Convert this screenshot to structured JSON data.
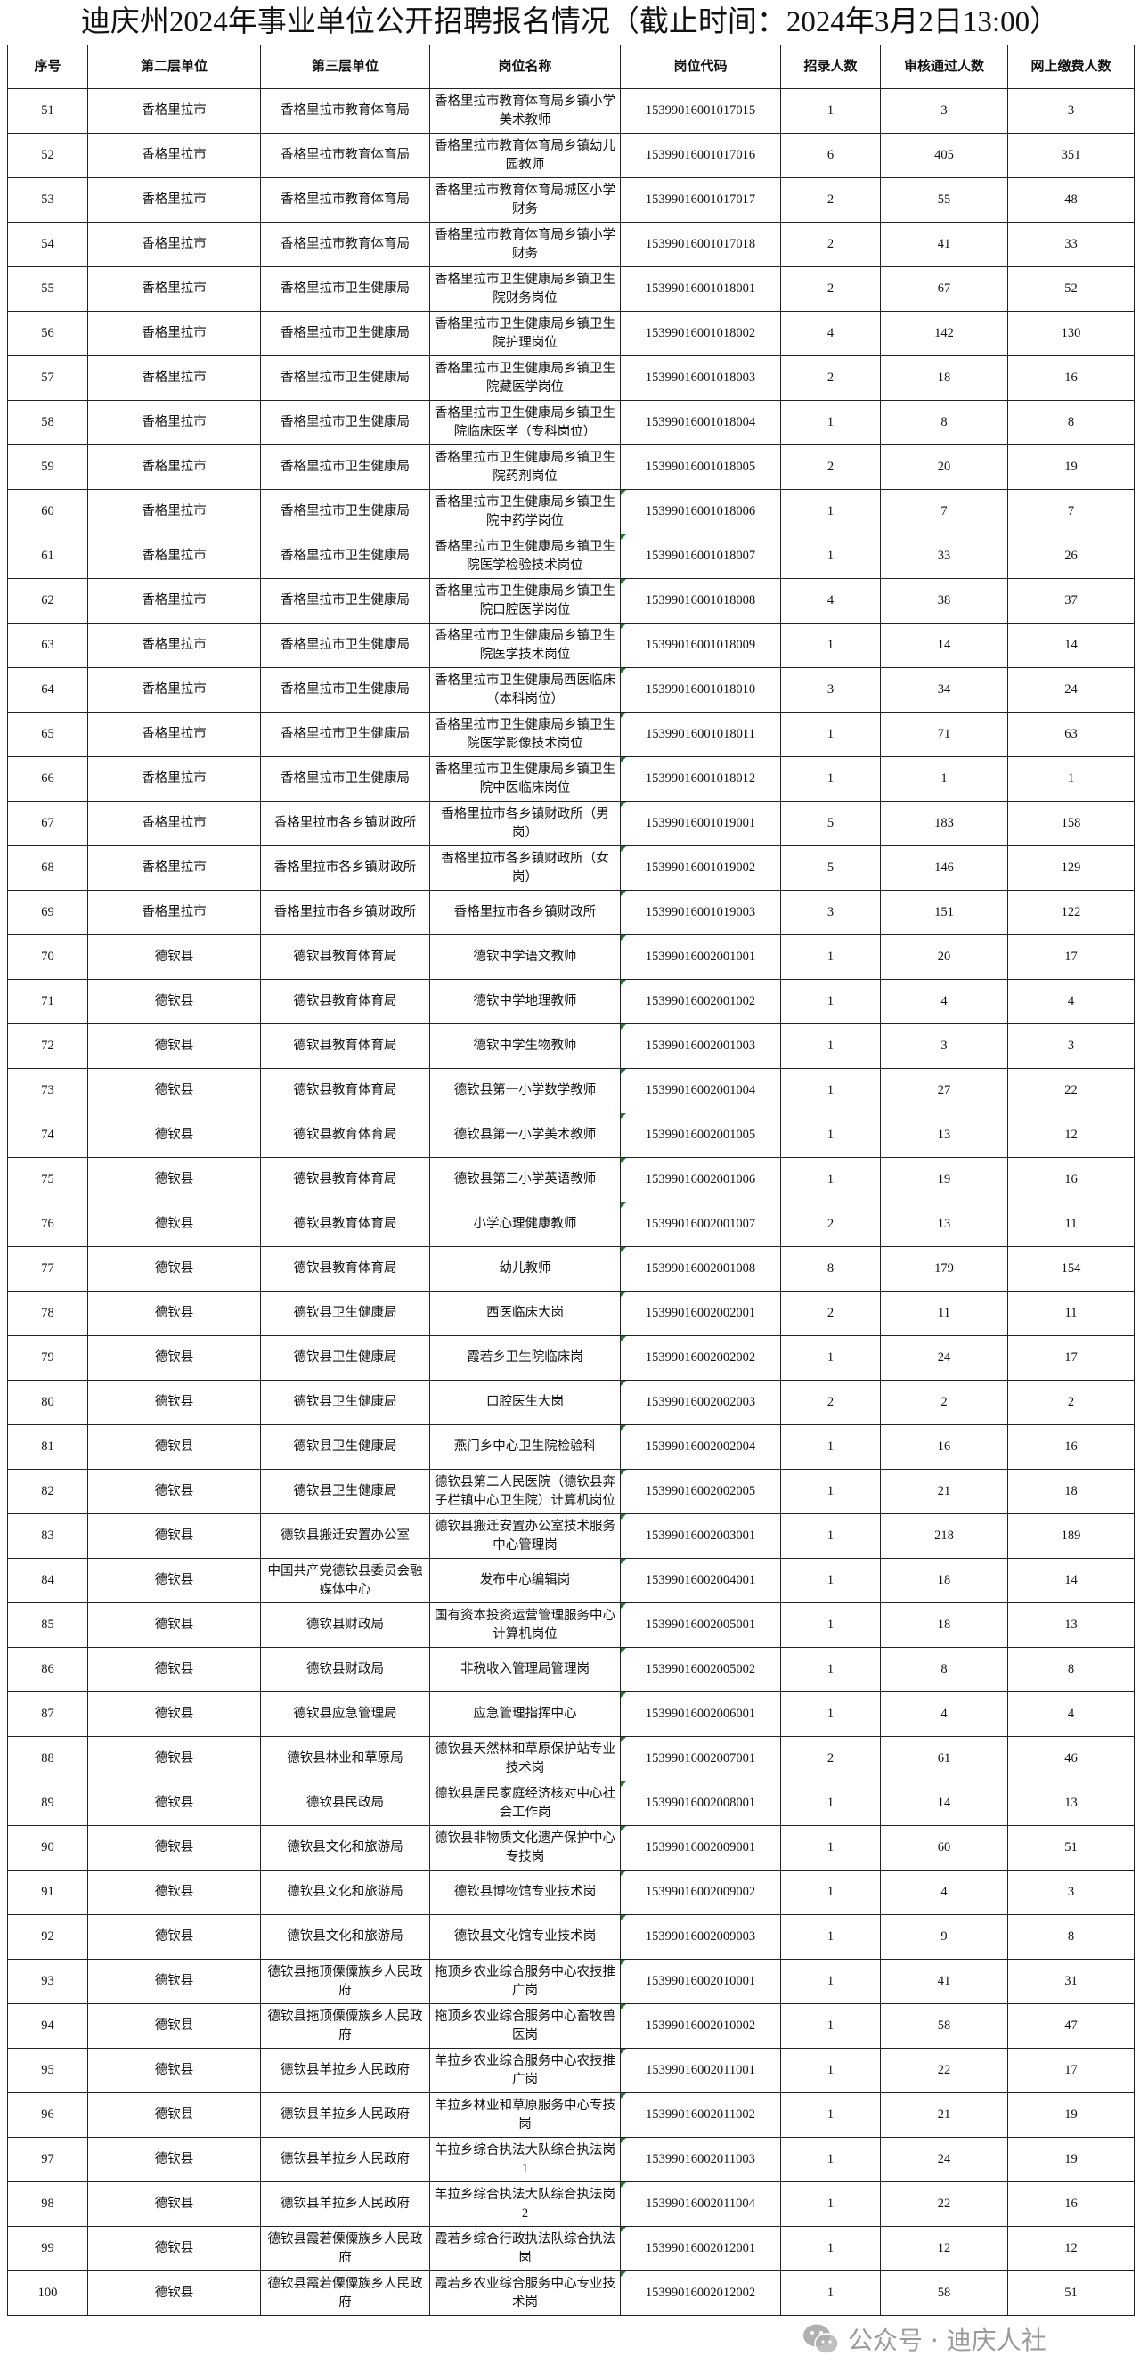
{
  "title": "迪庆州2024年事业单位公开招聘报名情况（截止时间：2024年3月2日13:00）",
  "columns": [
    "序号",
    "第二层单位",
    "第三层单位",
    "岗位名称",
    "岗位代码",
    "招录人数",
    "审核通过人数",
    "网上缴费人数"
  ],
  "rows": [
    [
      "51",
      "香格里拉市",
      "香格里拉市教育体育局",
      "香格里拉市教育体育局乡镇小学美术教师",
      "15399016001017015",
      "1",
      "3",
      "3"
    ],
    [
      "52",
      "香格里拉市",
      "香格里拉市教育体育局",
      "香格里拉市教育体育局乡镇幼儿园教师",
      "15399016001017016",
      "6",
      "405",
      "351"
    ],
    [
      "53",
      "香格里拉市",
      "香格里拉市教育体育局",
      "香格里拉市教育体育局城区小学财务",
      "15399016001017017",
      "2",
      "55",
      "48"
    ],
    [
      "54",
      "香格里拉市",
      "香格里拉市教育体育局",
      "香格里拉市教育体育局乡镇小学财务",
      "15399016001017018",
      "2",
      "41",
      "33"
    ],
    [
      "55",
      "香格里拉市",
      "香格里拉市卫生健康局",
      "香格里拉市卫生健康局乡镇卫生院财务岗位",
      "15399016001018001",
      "2",
      "67",
      "52"
    ],
    [
      "56",
      "香格里拉市",
      "香格里拉市卫生健康局",
      "香格里拉市卫生健康局乡镇卫生院护理岗位",
      "15399016001018002",
      "4",
      "142",
      "130"
    ],
    [
      "57",
      "香格里拉市",
      "香格里拉市卫生健康局",
      "香格里拉市卫生健康局乡镇卫生院藏医学岗位",
      "15399016001018003",
      "2",
      "18",
      "16"
    ],
    [
      "58",
      "香格里拉市",
      "香格里拉市卫生健康局",
      "香格里拉市卫生健康局乡镇卫生院临床医学（专科岗位）",
      "15399016001018004",
      "1",
      "8",
      "8"
    ],
    [
      "59",
      "香格里拉市",
      "香格里拉市卫生健康局",
      "香格里拉市卫生健康局乡镇卫生院药剂岗位",
      "15399016001018005",
      "2",
      "20",
      "19"
    ],
    [
      "60",
      "香格里拉市",
      "香格里拉市卫生健康局",
      "香格里拉市卫生健康局乡镇卫生院中药学岗位",
      "15399016001018006",
      "1",
      "7",
      "7"
    ],
    [
      "61",
      "香格里拉市",
      "香格里拉市卫生健康局",
      "香格里拉市卫生健康局乡镇卫生院医学检验技术岗位",
      "15399016001018007",
      "1",
      "33",
      "26"
    ],
    [
      "62",
      "香格里拉市",
      "香格里拉市卫生健康局",
      "香格里拉市卫生健康局乡镇卫生院口腔医学岗位",
      "15399016001018008",
      "4",
      "38",
      "37"
    ],
    [
      "63",
      "香格里拉市",
      "香格里拉市卫生健康局",
      "香格里拉市卫生健康局乡镇卫生院医学技术岗位",
      "15399016001018009",
      "1",
      "14",
      "14"
    ],
    [
      "64",
      "香格里拉市",
      "香格里拉市卫生健康局",
      "香格里拉市卫生健康局西医临床（本科岗位）",
      "15399016001018010",
      "3",
      "34",
      "24"
    ],
    [
      "65",
      "香格里拉市",
      "香格里拉市卫生健康局",
      "香格里拉市卫生健康局乡镇卫生院医学影像技术岗位",
      "15399016001018011",
      "1",
      "71",
      "63"
    ],
    [
      "66",
      "香格里拉市",
      "香格里拉市卫生健康局",
      "香格里拉市卫生健康局乡镇卫生院中医临床岗位",
      "15399016001018012",
      "1",
      "1",
      "1"
    ],
    [
      "67",
      "香格里拉市",
      "香格里拉市各乡镇财政所",
      "香格里拉市各乡镇财政所（男岗）",
      "15399016001019001",
      "5",
      "183",
      "158"
    ],
    [
      "68",
      "香格里拉市",
      "香格里拉市各乡镇财政所",
      "香格里拉市各乡镇财政所（女岗）",
      "15399016001019002",
      "5",
      "146",
      "129"
    ],
    [
      "69",
      "香格里拉市",
      "香格里拉市各乡镇财政所",
      "香格里拉市各乡镇财政所",
      "15399016001019003",
      "3",
      "151",
      "122"
    ],
    [
      "70",
      "德钦县",
      "德钦县教育体育局",
      "德钦中学语文教师",
      "15399016002001001",
      "1",
      "20",
      "17"
    ],
    [
      "71",
      "德钦县",
      "德钦县教育体育局",
      "德钦中学地理教师",
      "15399016002001002",
      "1",
      "4",
      "4"
    ],
    [
      "72",
      "德钦县",
      "德钦县教育体育局",
      "德钦中学生物教师",
      "15399016002001003",
      "1",
      "3",
      "3"
    ],
    [
      "73",
      "德钦县",
      "德钦县教育体育局",
      "德钦县第一小学数学教师",
      "15399016002001004",
      "1",
      "27",
      "22"
    ],
    [
      "74",
      "德钦县",
      "德钦县教育体育局",
      "德钦县第一小学美术教师",
      "15399016002001005",
      "1",
      "13",
      "12"
    ],
    [
      "75",
      "德钦县",
      "德钦县教育体育局",
      "德钦县第三小学英语教师",
      "15399016002001006",
      "1",
      "19",
      "16"
    ],
    [
      "76",
      "德钦县",
      "德钦县教育体育局",
      "小学心理健康教师",
      "15399016002001007",
      "2",
      "13",
      "11"
    ],
    [
      "77",
      "德钦县",
      "德钦县教育体育局",
      "幼儿教师",
      "15399016002001008",
      "8",
      "179",
      "154"
    ],
    [
      "78",
      "德钦县",
      "德钦县卫生健康局",
      "西医临床大岗",
      "15399016002002001",
      "2",
      "11",
      "11"
    ],
    [
      "79",
      "德钦县",
      "德钦县卫生健康局",
      "霞若乡卫生院临床岗",
      "15399016002002002",
      "1",
      "24",
      "17"
    ],
    [
      "80",
      "德钦县",
      "德钦县卫生健康局",
      "口腔医生大岗",
      "15399016002002003",
      "2",
      "2",
      "2"
    ],
    [
      "81",
      "德钦县",
      "德钦县卫生健康局",
      "燕门乡中心卫生院检验科",
      "15399016002002004",
      "1",
      "16",
      "16"
    ],
    [
      "82",
      "德钦县",
      "德钦县卫生健康局",
      "德钦县第二人民医院（德钦县奔子栏镇中心卫生院）计算机岗位",
      "15399016002002005",
      "1",
      "21",
      "18"
    ],
    [
      "83",
      "德钦县",
      "德钦县搬迁安置办公室",
      "德钦县搬迁安置办公室技术服务中心管理岗",
      "15399016002003001",
      "1",
      "218",
      "189"
    ],
    [
      "84",
      "德钦县",
      "中国共产党德钦县委员会融媒体中心",
      "发布中心编辑岗",
      "15399016002004001",
      "1",
      "18",
      "14"
    ],
    [
      "85",
      "德钦县",
      "德钦县财政局",
      "国有资本投资运营管理服务中心计算机岗位",
      "15399016002005001",
      "1",
      "18",
      "13"
    ],
    [
      "86",
      "德钦县",
      "德钦县财政局",
      "非税收入管理局管理岗",
      "15399016002005002",
      "1",
      "8",
      "8"
    ],
    [
      "87",
      "德钦县",
      "德钦县应急管理局",
      "应急管理指挥中心",
      "15399016002006001",
      "1",
      "4",
      "4"
    ],
    [
      "88",
      "德钦县",
      "德钦县林业和草原局",
      "德钦县天然林和草原保护站专业技术岗",
      "15399016002007001",
      "2",
      "61",
      "46"
    ],
    [
      "89",
      "德钦县",
      "德钦县民政局",
      "德钦县居民家庭经济核对中心社会工作岗",
      "15399016002008001",
      "1",
      "14",
      "13"
    ],
    [
      "90",
      "德钦县",
      "德钦县文化和旅游局",
      "德钦县非物质文化遗产保护中心专技岗",
      "15399016002009001",
      "1",
      "60",
      "51"
    ],
    [
      "91",
      "德钦县",
      "德钦县文化和旅游局",
      "德钦县博物馆专业技术岗",
      "15399016002009002",
      "1",
      "4",
      "3"
    ],
    [
      "92",
      "德钦县",
      "德钦县文化和旅游局",
      "德钦县文化馆专业技术岗",
      "15399016002009003",
      "1",
      "9",
      "8"
    ],
    [
      "93",
      "德钦县",
      "德钦县拖顶傈僳族乡人民政府",
      "拖顶乡农业综合服务中心农技推广岗",
      "15399016002010001",
      "1",
      "41",
      "31"
    ],
    [
      "94",
      "德钦县",
      "德钦县拖顶傈僳族乡人民政府",
      "拖顶乡农业综合服务中心畜牧兽医岗",
      "15399016002010002",
      "1",
      "58",
      "47"
    ],
    [
      "95",
      "德钦县",
      "德钦县羊拉乡人民政府",
      "羊拉乡农业综合服务中心农技推广岗",
      "15399016002011001",
      "1",
      "22",
      "17"
    ],
    [
      "96",
      "德钦县",
      "德钦县羊拉乡人民政府",
      "羊拉乡林业和草原服务中心专技岗",
      "15399016002011002",
      "1",
      "21",
      "19"
    ],
    [
      "97",
      "德钦县",
      "德钦县羊拉乡人民政府",
      "羊拉乡综合执法大队综合执法岗1",
      "15399016002011003",
      "1",
      "24",
      "19"
    ],
    [
      "98",
      "德钦县",
      "德钦县羊拉乡人民政府",
      "羊拉乡综合执法大队综合执法岗2",
      "15399016002011004",
      "1",
      "22",
      "16"
    ],
    [
      "99",
      "德钦县",
      "德钦县霞若傈僳族乡人民政府",
      "霞若乡综合行政执法队综合执法岗",
      "15399016002012001",
      "1",
      "12",
      "12"
    ],
    [
      "100",
      "德钦县",
      "德钦县霞若傈僳族乡人民政府",
      "霞若乡农业综合服务中心专业技术岗",
      "15399016002012002",
      "1",
      "58",
      "51"
    ]
  ],
  "watermark": {
    "text": "公众号 · 迪庆人社",
    "icon": "wechat-icon"
  },
  "colors": {
    "cell_marker": "#1a7f2a",
    "border": "#222222"
  }
}
